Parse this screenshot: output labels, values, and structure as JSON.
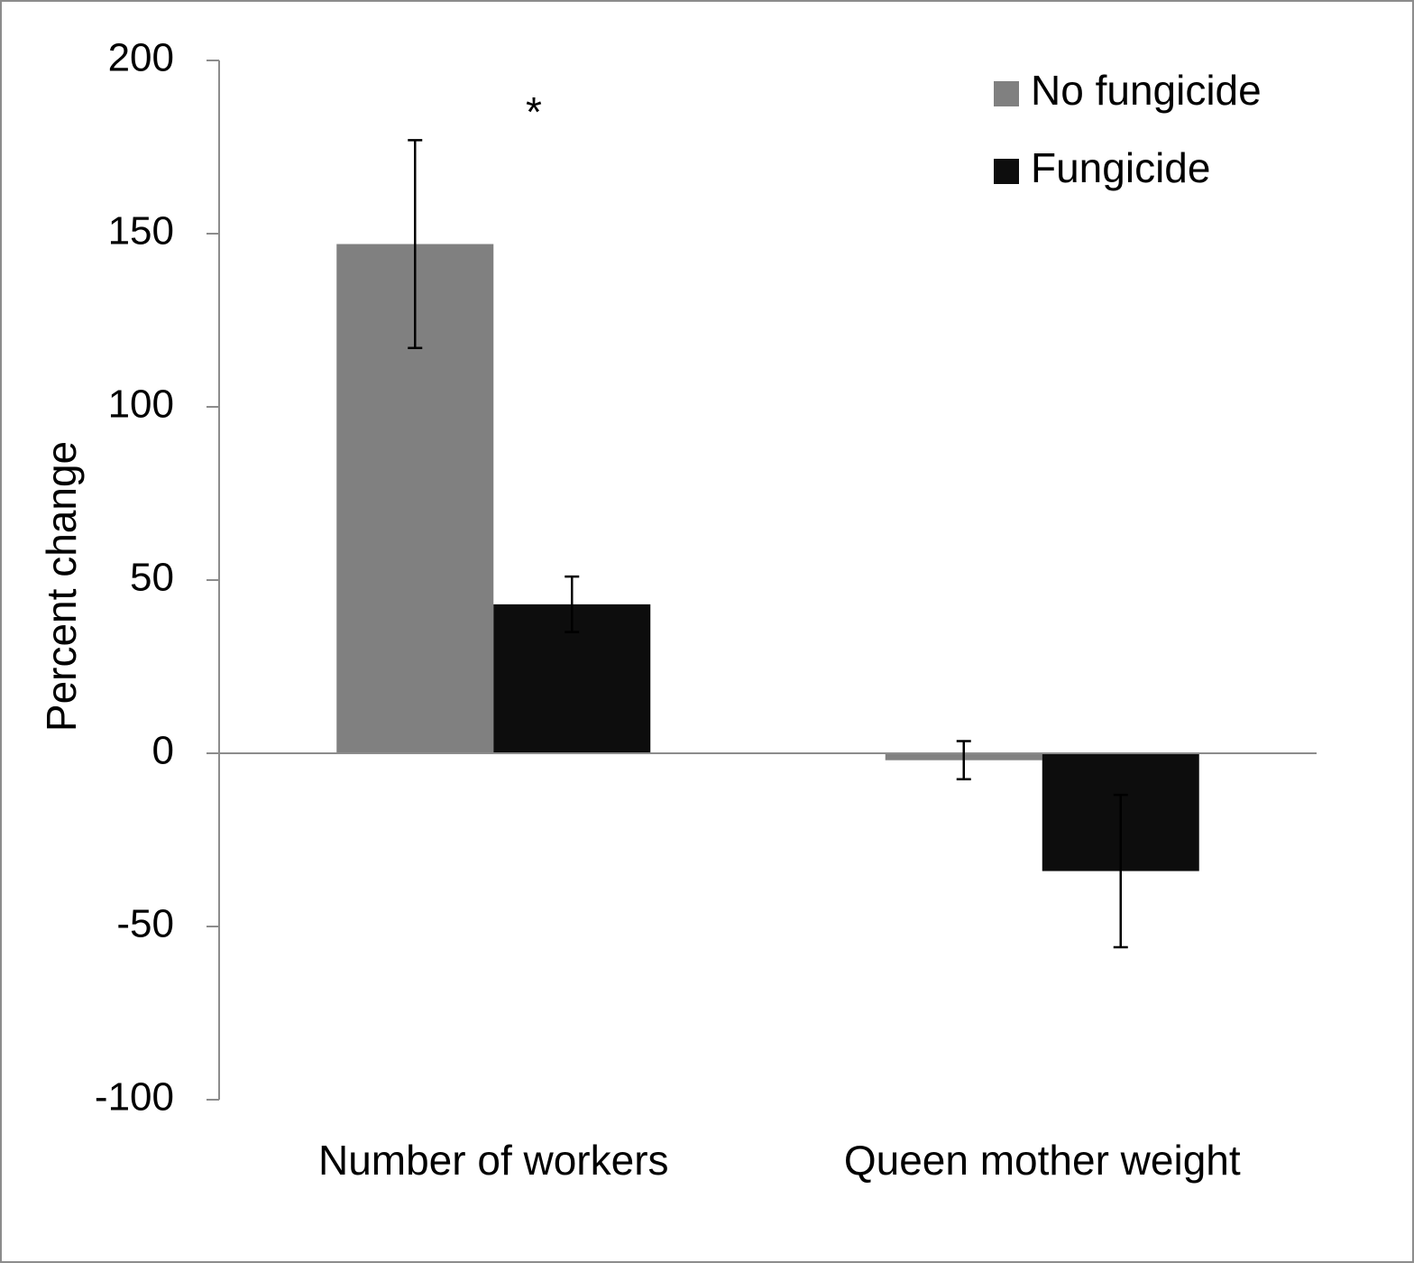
{
  "chart_data": {
    "type": "bar",
    "ylabel": "Percent change",
    "annotation": "*",
    "categories": [
      "Number of workers",
      "Queen mother weight"
    ],
    "series": [
      {
        "name": "No fungicide",
        "color": "#808080",
        "values": [
          147,
          -2
        ],
        "errors": [
          30,
          5.5
        ]
      },
      {
        "name": "Fungicide",
        "color": "#0d0d0d",
        "values": [
          43,
          -34
        ],
        "errors": [
          8,
          22
        ]
      }
    ],
    "ylim": [
      -100,
      200
    ],
    "yticks": [
      -100,
      -50,
      0,
      50,
      100,
      150,
      200
    ],
    "legend": "upper right"
  }
}
